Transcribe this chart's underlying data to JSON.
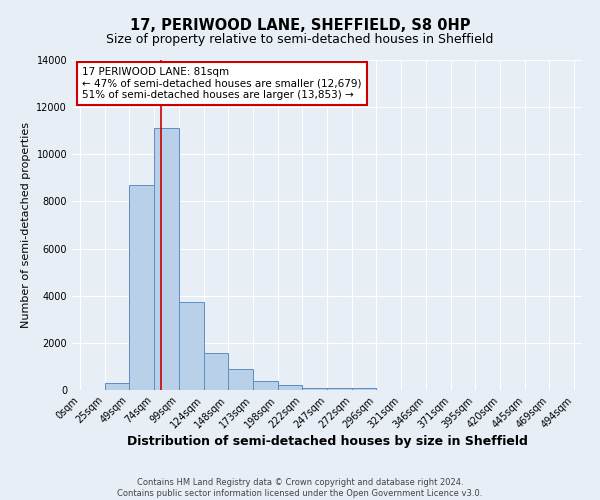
{
  "title": "17, PERIWOOD LANE, SHEFFIELD, S8 0HP",
  "subtitle": "Size of property relative to semi-detached houses in Sheffield",
  "xlabel": "Distribution of semi-detached houses by size in Sheffield",
  "ylabel": "Number of semi-detached properties",
  "footnote1": "Contains HM Land Registry data © Crown copyright and database right 2024.",
  "footnote2": "Contains public sector information licensed under the Open Government Licence v3.0.",
  "annotation_title": "17 PERIWOOD LANE: 81sqm",
  "annotation_line1": "← 47% of semi-detached houses are smaller (12,679)",
  "annotation_line2": "51% of semi-detached houses are larger (13,853) →",
  "property_size": 81,
  "bar_edges": [
    0,
    25,
    49,
    74,
    99,
    124,
    148,
    173,
    198,
    222,
    247,
    272,
    296,
    321,
    346,
    371,
    395,
    420,
    445,
    469,
    494
  ],
  "bar_heights": [
    0,
    300,
    8700,
    11100,
    3750,
    1550,
    900,
    400,
    200,
    100,
    100,
    100,
    0,
    0,
    0,
    0,
    0,
    0,
    0,
    0
  ],
  "bar_color": "#b8d0e8",
  "bar_edge_color": "#5b8ec4",
  "vline_color": "#cc0000",
  "vline_x": 81,
  "annotation_box_color": "#cc0000",
  "background_color": "#e8eef6",
  "plot_bg_color": "#e8eef6",
  "ylim": [
    0,
    14000
  ],
  "yticks": [
    0,
    2000,
    4000,
    6000,
    8000,
    10000,
    12000,
    14000
  ],
  "grid_color": "#ffffff",
  "title_fontsize": 10.5,
  "subtitle_fontsize": 9,
  "xlabel_fontsize": 9,
  "ylabel_fontsize": 8,
  "tick_fontsize": 7,
  "annotation_fontsize": 7.5,
  "footnote_fontsize": 6
}
